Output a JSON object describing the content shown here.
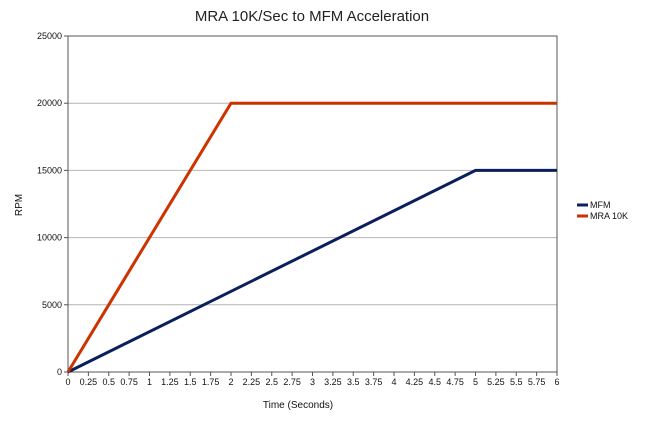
{
  "chart_data": {
    "type": "line",
    "title": "MRA 10K/Sec to MFM Acceleration",
    "xlabel": "Time (Seconds)",
    "ylabel": "RPM",
    "xlim": [
      0,
      6
    ],
    "ylim": [
      0,
      25000
    ],
    "x_ticks": [
      "0",
      "0.25",
      "0.5",
      "0.75",
      "1",
      "1.25",
      "1.5",
      "1.75",
      "2",
      "2.25",
      "2.5",
      "2.75",
      "3",
      "3.25",
      "3.5",
      "3.75",
      "4",
      "4.25",
      "4.5",
      "4.75",
      "5",
      "5.25",
      "5.5",
      "5.75",
      "6"
    ],
    "y_ticks": [
      "0",
      "5000",
      "10000",
      "15000",
      "20000",
      "25000"
    ],
    "grid": "horizontal",
    "legend_position": "right",
    "series": [
      {
        "name": "MFM",
        "color": "#0b1f5c",
        "points": [
          [
            0,
            0
          ],
          [
            5,
            15000
          ],
          [
            6,
            15000
          ]
        ]
      },
      {
        "name": "MRA 10K",
        "color": "#cc3300",
        "points": [
          [
            0,
            0
          ],
          [
            2,
            20000
          ],
          [
            6,
            20000
          ]
        ]
      }
    ]
  }
}
